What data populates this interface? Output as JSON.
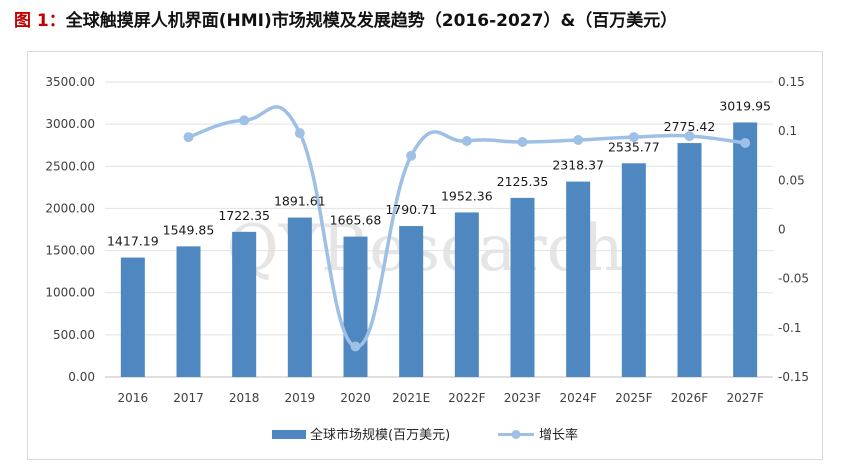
{
  "title": {
    "prefix": "图 1：",
    "text": "全球触摸屏人机界面(HMI)市场规模及发展趋势（2016-2027）&（百万美元）"
  },
  "watermark": "QYResearch",
  "colors": {
    "bar": "#4f87c0",
    "line": "#9ec0e6",
    "title_prefix": "#c00000"
  },
  "chart_data": {
    "type": "bar",
    "title": "全球触摸屏人机界面(HMI)市场规模及发展趋势（2016-2027）&（百万美元）",
    "categories": [
      "2016",
      "2017",
      "2018",
      "2019",
      "2020",
      "2021E",
      "2022F",
      "2023F",
      "2024F",
      "2025F",
      "2026F",
      "2027F"
    ],
    "series": [
      {
        "name": "全球市场规模(百万美元)",
        "type": "bar",
        "axis": "left",
        "values": [
          1417.19,
          1549.85,
          1722.35,
          1891.61,
          1665.68,
          1790.71,
          1952.36,
          2125.35,
          2318.37,
          2535.77,
          2775.42,
          3019.95
        ],
        "labels": [
          "1417.19",
          "1549.85",
          "1722.35",
          "1891.61",
          "1665.68",
          "1790.71",
          "1952.36",
          "2125.35",
          "2318.37",
          "2535.77",
          "2775.42",
          "3019.95"
        ]
      },
      {
        "name": "增长率",
        "type": "line",
        "axis": "right",
        "values": [
          null,
          0.094,
          0.111,
          0.098,
          -0.119,
          0.075,
          0.09,
          0.089,
          0.091,
          0.094,
          0.095,
          0.088
        ]
      }
    ],
    "y_left": {
      "ylim": [
        0,
        3500
      ],
      "ticks": [
        0,
        500,
        1000,
        1500,
        2000,
        2500,
        3000,
        3500
      ],
      "tick_labels": [
        "0.00",
        "500.00",
        "1000.00",
        "1500.00",
        "2000.00",
        "2500.00",
        "3000.00",
        "3500.00"
      ]
    },
    "y_right": {
      "ylim": [
        -0.15,
        0.15
      ],
      "ticks": [
        -0.15,
        -0.1,
        -0.05,
        0,
        0.05,
        0.1,
        0.15
      ],
      "tick_labels": [
        "-0.15",
        "-0.1",
        "-0.05",
        "0",
        "0.05",
        "0.1",
        "0.15"
      ]
    },
    "grid": true,
    "legend": "bottom"
  }
}
